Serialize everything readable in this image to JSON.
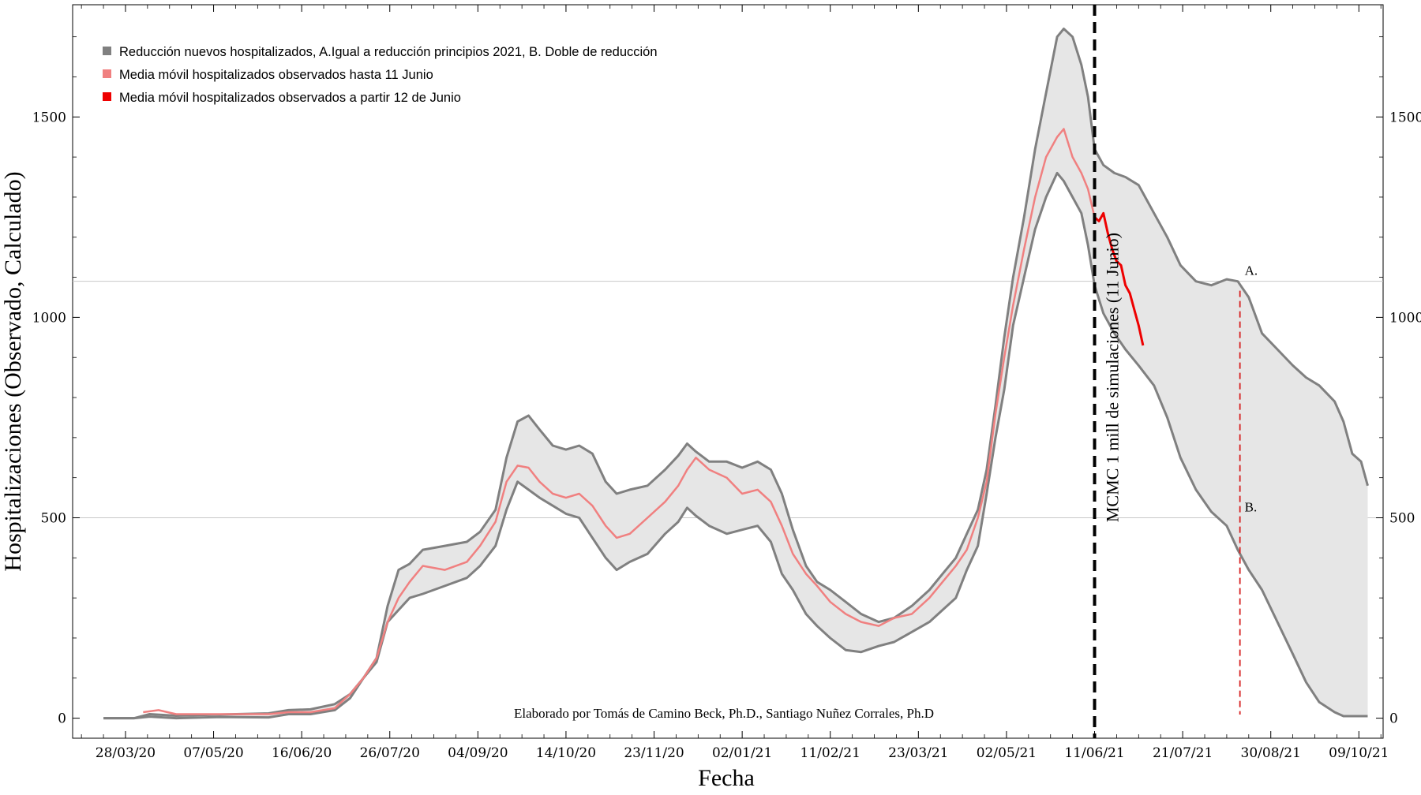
{
  "chart_data": {
    "type": "line",
    "xlabel": "Fecha",
    "ylabel": "Hospitalizaciones (Observado, Calculado)",
    "ylim": [
      -50,
      1780
    ],
    "yticks": [
      0,
      500,
      1000,
      1500
    ],
    "x_tick_labels": [
      "28/03/20",
      "07/05/20",
      "16/06/20",
      "26/07/20",
      "04/09/20",
      "14/10/20",
      "23/11/20",
      "02/01/21",
      "11/02/21",
      "23/03/21",
      "02/05/21",
      "11/06/21",
      "21/07/21",
      "30/08/21",
      "09/10/21"
    ],
    "x_tick_dates": [
      "2020-03-28",
      "2020-05-07",
      "2020-06-16",
      "2020-07-26",
      "2020-09-04",
      "2020-10-14",
      "2020-11-23",
      "2021-01-02",
      "2021-02-11",
      "2021-03-23",
      "2021-05-02",
      "2021-06-11",
      "2021-07-21",
      "2021-08-30",
      "2021-10-09"
    ],
    "xlim": [
      "2020-03-04",
      "2021-10-20"
    ],
    "grid_y": [
      500,
      1090
    ],
    "legend": {
      "placement": "top-left",
      "entries": [
        {
          "label": "Reducción nuevos hospitalizados, A.Igual a reducción principios 2021, B. Doble de reducción",
          "color": "#808080"
        },
        {
          "label": "Media móvil hospitalizados observados hasta 11 Junio",
          "color": "#f08080"
        },
        {
          "label": "Media móvil hospitalizados observados a partir 12 de Junio",
          "color": "#ee0000"
        }
      ]
    },
    "band": {
      "name": "Reducción nuevos hospitalizados",
      "color": "#808080",
      "fill": "#e6e6e6",
      "upper": [
        [
          "2020-03-18",
          0
        ],
        [
          "2020-04-01",
          0
        ],
        [
          "2020-04-08",
          10
        ],
        [
          "2020-04-20",
          6
        ],
        [
          "2020-05-10",
          9
        ],
        [
          "2020-06-01",
          12
        ],
        [
          "2020-06-10",
          20
        ],
        [
          "2020-06-20",
          22
        ],
        [
          "2020-07-01",
          35
        ],
        [
          "2020-07-08",
          60
        ],
        [
          "2020-07-14",
          100
        ],
        [
          "2020-07-20",
          150
        ],
        [
          "2020-07-25",
          280
        ],
        [
          "2020-07-30",
          370
        ],
        [
          "2020-08-04",
          385
        ],
        [
          "2020-08-10",
          420
        ],
        [
          "2020-08-20",
          430
        ],
        [
          "2020-08-30",
          440
        ],
        [
          "2020-09-05",
          465
        ],
        [
          "2020-09-12",
          520
        ],
        [
          "2020-09-17",
          650
        ],
        [
          "2020-09-22",
          740
        ],
        [
          "2020-09-27",
          755
        ],
        [
          "2020-10-02",
          720
        ],
        [
          "2020-10-08",
          680
        ],
        [
          "2020-10-14",
          670
        ],
        [
          "2020-10-20",
          680
        ],
        [
          "2020-10-26",
          660
        ],
        [
          "2020-11-01",
          590
        ],
        [
          "2020-11-06",
          560
        ],
        [
          "2020-11-12",
          570
        ],
        [
          "2020-11-20",
          580
        ],
        [
          "2020-11-28",
          620
        ],
        [
          "2020-12-04",
          655
        ],
        [
          "2020-12-08",
          685
        ],
        [
          "2020-12-12",
          665
        ],
        [
          "2020-12-18",
          640
        ],
        [
          "2020-12-26",
          640
        ],
        [
          "2021-01-02",
          625
        ],
        [
          "2021-01-09",
          640
        ],
        [
          "2021-01-15",
          620
        ],
        [
          "2021-01-20",
          560
        ],
        [
          "2021-01-25",
          470
        ],
        [
          "2021-01-31",
          380
        ],
        [
          "2021-02-05",
          340
        ],
        [
          "2021-02-11",
          320
        ],
        [
          "2021-02-18",
          290
        ],
        [
          "2021-02-25",
          260
        ],
        [
          "2021-03-05",
          240
        ],
        [
          "2021-03-12",
          250
        ],
        [
          "2021-03-20",
          280
        ],
        [
          "2021-03-28",
          320
        ],
        [
          "2021-04-03",
          360
        ],
        [
          "2021-04-09",
          400
        ],
        [
          "2021-04-14",
          460
        ],
        [
          "2021-04-19",
          520
        ],
        [
          "2021-04-23",
          620
        ],
        [
          "2021-04-27",
          780
        ],
        [
          "2021-05-01",
          950
        ],
        [
          "2021-05-05",
          1100
        ],
        [
          "2021-05-10",
          1250
        ],
        [
          "2021-05-15",
          1420
        ],
        [
          "2021-05-20",
          1560
        ],
        [
          "2021-05-25",
          1700
        ],
        [
          "2021-05-28",
          1720
        ],
        [
          "2021-06-01",
          1700
        ],
        [
          "2021-06-05",
          1630
        ],
        [
          "2021-06-08",
          1550
        ],
        [
          "2021-06-11",
          1420
        ],
        [
          "2021-06-15",
          1380
        ],
        [
          "2021-06-20",
          1360
        ],
        [
          "2021-06-25",
          1350
        ],
        [
          "2021-07-01",
          1330
        ],
        [
          "2021-07-08",
          1260
        ],
        [
          "2021-07-14",
          1200
        ],
        [
          "2021-07-20",
          1130
        ],
        [
          "2021-07-27",
          1090
        ],
        [
          "2021-08-03",
          1080
        ],
        [
          "2021-08-10",
          1095
        ],
        [
          "2021-08-15",
          1090
        ],
        [
          "2021-08-20",
          1050
        ],
        [
          "2021-08-26",
          960
        ],
        [
          "2021-09-02",
          920
        ],
        [
          "2021-09-09",
          880
        ],
        [
          "2021-09-15",
          850
        ],
        [
          "2021-09-21",
          830
        ],
        [
          "2021-09-28",
          790
        ],
        [
          "2021-10-02",
          740
        ],
        [
          "2021-10-06",
          660
        ],
        [
          "2021-10-10",
          640
        ],
        [
          "2021-10-13",
          580
        ]
      ],
      "lower": [
        [
          "2020-03-18",
          0
        ],
        [
          "2020-04-01",
          0
        ],
        [
          "2020-04-08",
          4
        ],
        [
          "2020-04-20",
          0
        ],
        [
          "2020-05-10",
          3
        ],
        [
          "2020-06-01",
          2
        ],
        [
          "2020-06-10",
          10
        ],
        [
          "2020-06-20",
          10
        ],
        [
          "2020-07-01",
          20
        ],
        [
          "2020-07-08",
          50
        ],
        [
          "2020-07-14",
          100
        ],
        [
          "2020-07-20",
          140
        ],
        [
          "2020-07-25",
          240
        ],
        [
          "2020-07-30",
          270
        ],
        [
          "2020-08-04",
          300
        ],
        [
          "2020-08-10",
          310
        ],
        [
          "2020-08-20",
          330
        ],
        [
          "2020-08-30",
          350
        ],
        [
          "2020-09-05",
          380
        ],
        [
          "2020-09-12",
          430
        ],
        [
          "2020-09-17",
          520
        ],
        [
          "2020-09-22",
          590
        ],
        [
          "2020-09-27",
          570
        ],
        [
          "2020-10-02",
          550
        ],
        [
          "2020-10-08",
          530
        ],
        [
          "2020-10-14",
          510
        ],
        [
          "2020-10-20",
          500
        ],
        [
          "2020-10-26",
          450
        ],
        [
          "2020-11-01",
          400
        ],
        [
          "2020-11-06",
          370
        ],
        [
          "2020-11-12",
          390
        ],
        [
          "2020-11-20",
          410
        ],
        [
          "2020-11-28",
          460
        ],
        [
          "2020-12-04",
          490
        ],
        [
          "2020-12-08",
          525
        ],
        [
          "2020-12-12",
          505
        ],
        [
          "2020-12-18",
          480
        ],
        [
          "2020-12-26",
          460
        ],
        [
          "2021-01-02",
          470
        ],
        [
          "2021-01-09",
          480
        ],
        [
          "2021-01-15",
          440
        ],
        [
          "2021-01-20",
          360
        ],
        [
          "2021-01-25",
          320
        ],
        [
          "2021-01-31",
          260
        ],
        [
          "2021-02-05",
          230
        ],
        [
          "2021-02-11",
          200
        ],
        [
          "2021-02-18",
          170
        ],
        [
          "2021-02-25",
          165
        ],
        [
          "2021-03-05",
          180
        ],
        [
          "2021-03-12",
          190
        ],
        [
          "2021-03-20",
          215
        ],
        [
          "2021-03-28",
          240
        ],
        [
          "2021-04-03",
          270
        ],
        [
          "2021-04-09",
          300
        ],
        [
          "2021-04-14",
          370
        ],
        [
          "2021-04-19",
          430
        ],
        [
          "2021-04-23",
          560
        ],
        [
          "2021-04-27",
          700
        ],
        [
          "2021-05-01",
          820
        ],
        [
          "2021-05-05",
          980
        ],
        [
          "2021-05-10",
          1100
        ],
        [
          "2021-05-15",
          1220
        ],
        [
          "2021-05-20",
          1300
        ],
        [
          "2021-05-25",
          1360
        ],
        [
          "2021-05-28",
          1340
        ],
        [
          "2021-06-01",
          1300
        ],
        [
          "2021-06-05",
          1260
        ],
        [
          "2021-06-08",
          1180
        ],
        [
          "2021-06-11",
          1080
        ],
        [
          "2021-06-15",
          1010
        ],
        [
          "2021-06-20",
          960
        ],
        [
          "2021-06-25",
          920
        ],
        [
          "2021-07-01",
          880
        ],
        [
          "2021-07-08",
          830
        ],
        [
          "2021-07-14",
          750
        ],
        [
          "2021-07-20",
          650
        ],
        [
          "2021-07-27",
          570
        ],
        [
          "2021-08-03",
          515
        ],
        [
          "2021-08-10",
          480
        ],
        [
          "2021-08-15",
          420
        ],
        [
          "2021-08-20",
          370
        ],
        [
          "2021-08-26",
          320
        ],
        [
          "2021-09-02",
          240
        ],
        [
          "2021-09-09",
          160
        ],
        [
          "2021-09-15",
          90
        ],
        [
          "2021-09-21",
          40
        ],
        [
          "2021-09-28",
          15
        ],
        [
          "2021-10-02",
          5
        ],
        [
          "2021-10-13",
          5
        ]
      ]
    },
    "series": [
      {
        "name": "Media móvil hospitalizados observados hasta 11 Junio",
        "color": "#f08080",
        "points": [
          [
            "2020-04-05",
            15
          ],
          [
            "2020-04-12",
            20
          ],
          [
            "2020-04-20",
            10
          ],
          [
            "2020-05-10",
            10
          ],
          [
            "2020-06-01",
            10
          ],
          [
            "2020-06-10",
            15
          ],
          [
            "2020-06-20",
            15
          ],
          [
            "2020-07-01",
            25
          ],
          [
            "2020-07-08",
            60
          ],
          [
            "2020-07-14",
            100
          ],
          [
            "2020-07-20",
            150
          ],
          [
            "2020-07-25",
            240
          ],
          [
            "2020-07-30",
            300
          ],
          [
            "2020-08-04",
            340
          ],
          [
            "2020-08-10",
            380
          ],
          [
            "2020-08-20",
            370
          ],
          [
            "2020-08-30",
            390
          ],
          [
            "2020-09-05",
            430
          ],
          [
            "2020-09-12",
            490
          ],
          [
            "2020-09-17",
            590
          ],
          [
            "2020-09-22",
            630
          ],
          [
            "2020-09-27",
            625
          ],
          [
            "2020-10-02",
            590
          ],
          [
            "2020-10-08",
            560
          ],
          [
            "2020-10-14",
            550
          ],
          [
            "2020-10-20",
            560
          ],
          [
            "2020-10-26",
            530
          ],
          [
            "2020-11-01",
            480
          ],
          [
            "2020-11-06",
            450
          ],
          [
            "2020-11-12",
            460
          ],
          [
            "2020-11-20",
            500
          ],
          [
            "2020-11-28",
            540
          ],
          [
            "2020-12-04",
            580
          ],
          [
            "2020-12-08",
            620
          ],
          [
            "2020-12-12",
            650
          ],
          [
            "2020-12-18",
            620
          ],
          [
            "2020-12-26",
            600
          ],
          [
            "2021-01-02",
            560
          ],
          [
            "2021-01-09",
            570
          ],
          [
            "2021-01-15",
            540
          ],
          [
            "2021-01-20",
            480
          ],
          [
            "2021-01-25",
            410
          ],
          [
            "2021-01-31",
            360
          ],
          [
            "2021-02-05",
            330
          ],
          [
            "2021-02-11",
            290
          ],
          [
            "2021-02-18",
            260
          ],
          [
            "2021-02-25",
            240
          ],
          [
            "2021-03-05",
            230
          ],
          [
            "2021-03-12",
            250
          ],
          [
            "2021-03-20",
            260
          ],
          [
            "2021-03-28",
            300
          ],
          [
            "2021-04-03",
            340
          ],
          [
            "2021-04-09",
            380
          ],
          [
            "2021-04-14",
            420
          ],
          [
            "2021-04-19",
            500
          ],
          [
            "2021-04-23",
            590
          ],
          [
            "2021-04-27",
            760
          ],
          [
            "2021-05-01",
            900
          ],
          [
            "2021-05-05",
            1030
          ],
          [
            "2021-05-10",
            1170
          ],
          [
            "2021-05-15",
            1300
          ],
          [
            "2021-05-20",
            1400
          ],
          [
            "2021-05-25",
            1450
          ],
          [
            "2021-05-28",
            1470
          ],
          [
            "2021-06-01",
            1400
          ],
          [
            "2021-06-05",
            1360
          ],
          [
            "2021-06-08",
            1320
          ],
          [
            "2021-06-11",
            1250
          ]
        ]
      },
      {
        "name": "Media móvil hospitalizados observados a partir 12 de Junio",
        "color": "#ee0000",
        "points": [
          [
            "2021-06-11",
            1250
          ],
          [
            "2021-06-13",
            1240
          ],
          [
            "2021-06-15",
            1260
          ],
          [
            "2021-06-17",
            1210
          ],
          [
            "2021-06-19",
            1170
          ],
          [
            "2021-06-21",
            1140
          ],
          [
            "2021-06-23",
            1130
          ],
          [
            "2021-06-25",
            1080
          ],
          [
            "2021-06-27",
            1060
          ],
          [
            "2021-06-29",
            1020
          ],
          [
            "2021-07-01",
            980
          ],
          [
            "2021-07-03",
            930
          ]
        ]
      }
    ],
    "annotations": {
      "vline_main": {
        "date": "2021-06-11",
        "label": "MCMC 1 mill de simulaciones  (11 Junio)"
      },
      "vline_ab": {
        "date": "2021-08-16"
      },
      "point_a": {
        "label": "A.",
        "date": "2021-08-16",
        "value": 1090
      },
      "point_b": {
        "label": "B.",
        "date": "2021-08-16",
        "value": 500
      },
      "credit": "Elaborado por Tomás de Camino Beck, Ph.D., Santiago Nuñez Corrales, Ph.D"
    }
  }
}
